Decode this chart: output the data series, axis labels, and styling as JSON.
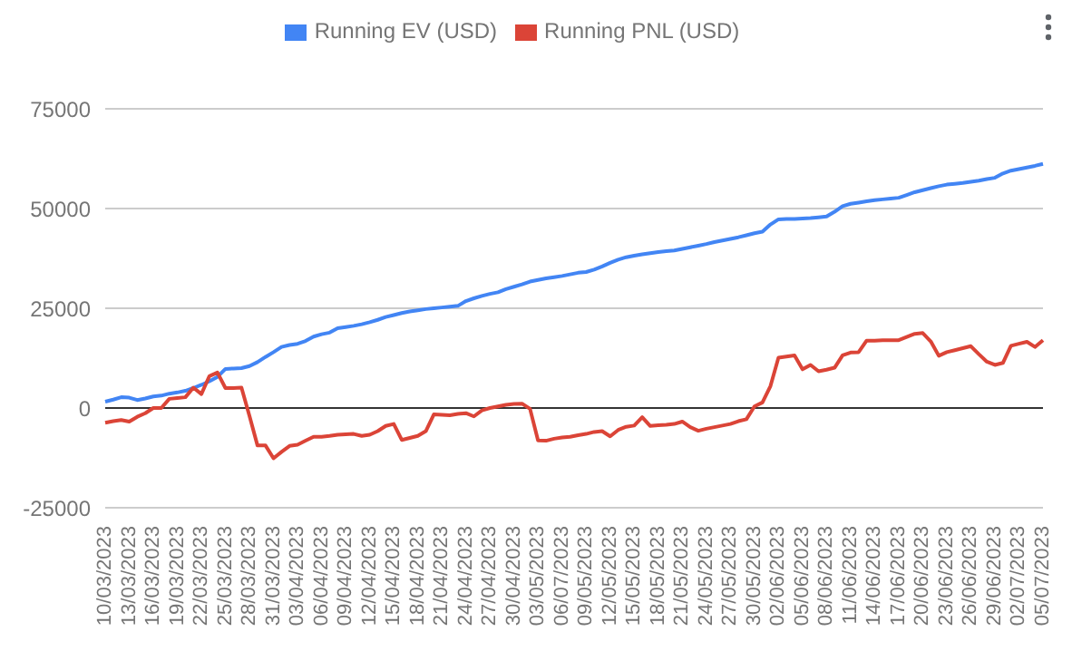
{
  "chart_data": {
    "type": "line",
    "categories": [
      "10/03/2023",
      null,
      null,
      "13/03/2023",
      null,
      null,
      "16/03/2023",
      null,
      null,
      "19/03/2023",
      null,
      null,
      "22/03/2023",
      null,
      null,
      "25/03/2023",
      null,
      null,
      "28/03/2023",
      null,
      null,
      "31/03/2023",
      null,
      null,
      "03/04/2023",
      null,
      null,
      "06/04/2023",
      null,
      null,
      "09/04/2023",
      null,
      null,
      "12/04/2023",
      null,
      null,
      "15/04/2023",
      null,
      null,
      "18/04/2023",
      null,
      null,
      "21/04/2023",
      null,
      null,
      "24/04/2023",
      null,
      null,
      "27/04/2023",
      null,
      null,
      "30/04/2023",
      null,
      null,
      "03/05/2023",
      null,
      null,
      "06/07/2023",
      null,
      null,
      "09/05/2023",
      null,
      null,
      "12/05/2023",
      null,
      null,
      "15/05/2023",
      null,
      null,
      "18/05/2023",
      null,
      null,
      "21/05/2023",
      null,
      null,
      "24/05/2023",
      null,
      null,
      "27/05/2023",
      null,
      null,
      "30/05/2023",
      null,
      null,
      "02/06/2023",
      null,
      null,
      "05/06/2023",
      null,
      null,
      "08/06/2023",
      null,
      null,
      "11/06/2023",
      null,
      null,
      "14/06/2023",
      null,
      null,
      "17/06/2023",
      null,
      null,
      "20/06/2023",
      null,
      null,
      "23/06/2023",
      null,
      null,
      "26/06/2023",
      null,
      null,
      "29/06/2023",
      null,
      null,
      "02/07/2023",
      null,
      null,
      "05/07/2023"
    ],
    "series": [
      {
        "name": "Running EV (USD)",
        "color": "#4285f4",
        "values": [
          1600,
          2100,
          2700,
          2600,
          2000,
          2400,
          2900,
          3100,
          3600,
          3900,
          4300,
          5000,
          5800,
          6700,
          7800,
          9800,
          9900,
          10000,
          10500,
          11500,
          12800,
          14000,
          15300,
          15800,
          16100,
          16800,
          17900,
          18500,
          18900,
          20000,
          20300,
          20600,
          21000,
          21500,
          22100,
          22800,
          23300,
          23800,
          24200,
          24500,
          24800,
          25000,
          25200,
          25400,
          25600,
          26800,
          27500,
          28100,
          28600,
          29000,
          29800,
          30400,
          31000,
          31700,
          32100,
          32500,
          32800,
          33100,
          33500,
          33900,
          34100,
          34700,
          35500,
          36400,
          37200,
          37800,
          38200,
          38500,
          38800,
          39100,
          39300,
          39500,
          39900,
          40300,
          40700,
          41100,
          41600,
          42000,
          42400,
          42800,
          43300,
          43800,
          44200,
          46000,
          47300,
          47400,
          47400,
          47500,
          47600,
          47800,
          48000,
          49200,
          50600,
          51200,
          51500,
          51800,
          52100,
          52300,
          52500,
          52700,
          53400,
          54100,
          54600,
          55100,
          55600,
          56000,
          56200,
          56400,
          56700,
          57000,
          57400,
          57700,
          58800,
          59500,
          59900,
          60300,
          60700,
          61200
        ]
      },
      {
        "name": "Running PNL (USD)",
        "color": "#db4437",
        "values": [
          -3700,
          -3300,
          -3000,
          -3400,
          -2200,
          -1300,
          0,
          0,
          2300,
          2500,
          2700,
          5100,
          3500,
          8000,
          8900,
          5000,
          5000,
          5100,
          -2000,
          -9400,
          -9400,
          -12600,
          -11000,
          -9500,
          -9200,
          -8200,
          -7200,
          -7200,
          -7000,
          -6700,
          -6600,
          -6500,
          -7000,
          -6700,
          -5800,
          -4500,
          -4000,
          -8000,
          -7500,
          -7000,
          -5800,
          -1600,
          -1700,
          -1800,
          -1500,
          -1300,
          -2100,
          -600,
          0,
          400,
          800,
          1000,
          1100,
          -200,
          -8100,
          -8200,
          -7700,
          -7400,
          -7200,
          -6800,
          -6500,
          -6000,
          -5800,
          -7100,
          -5500,
          -4700,
          -4400,
          -2300,
          -4500,
          -4300,
          -4200,
          -4000,
          -3400,
          -4800,
          -5700,
          -5200,
          -4800,
          -4400,
          -4000,
          -3300,
          -2800,
          400,
          1400,
          5500,
          12600,
          12900,
          13200,
          9700,
          10800,
          9200,
          9600,
          10100,
          13200,
          13900,
          14000,
          16900,
          16900,
          17000,
          17000,
          17000,
          17800,
          18600,
          18800,
          16700,
          13100,
          14000,
          14500,
          15000,
          15500,
          13500,
          11600,
          10800,
          11300,
          15600,
          16100,
          16600,
          15300,
          17000
        ]
      }
    ],
    "ylim": [
      -25000,
      75000
    ],
    "yticks": [
      -25000,
      0,
      25000,
      50000,
      75000
    ],
    "ref_lines": [
      {
        "axis": "y",
        "value": 0,
        "color": "#333333"
      }
    ],
    "grid": "y",
    "legend": "top",
    "marker": "none",
    "line_style": "solid"
  }
}
